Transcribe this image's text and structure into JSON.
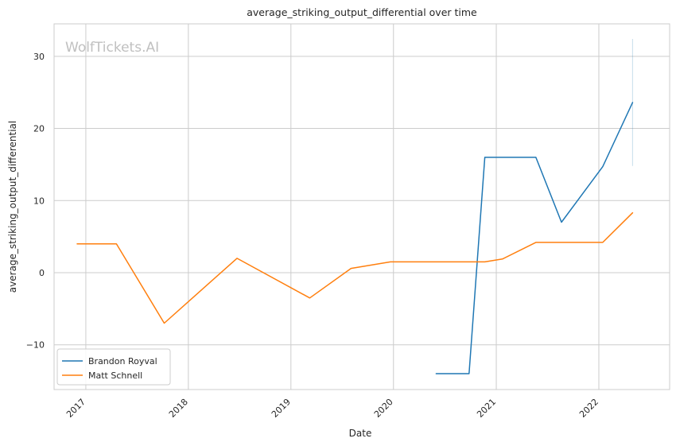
{
  "chart_data": {
    "type": "line",
    "title": "average_striking_output_differential over time",
    "xlabel": "Date",
    "ylabel": "average_striking_output_differential",
    "watermark": "WolfTickets.AI",
    "x_ticks": [
      "2017",
      "2018",
      "2019",
      "2020",
      "2021",
      "2022"
    ],
    "y_ticks": [
      -10,
      0,
      10,
      20,
      30
    ],
    "xlim": [
      "2016-09-10",
      "2022-09-10"
    ],
    "ylim": [
      -16.2,
      34.5
    ],
    "grid": true,
    "legend_position": "lower-left",
    "series": [
      {
        "name": "Brandon Royval",
        "color": "#1f77b4",
        "points": [
          {
            "x": "2020-06-01",
            "y": -14
          },
          {
            "x": "2020-09-26",
            "y": -14
          },
          {
            "x": "2020-11-21",
            "y": 16
          },
          {
            "x": "2021-05-22",
            "y": 16
          },
          {
            "x": "2021-08-21",
            "y": 7
          },
          {
            "x": "2022-01-15",
            "y": 14.7
          },
          {
            "x": "2022-05-01",
            "y": 23.6
          }
        ],
        "error_band": {
          "x": "2022-05-01",
          "low": 14.8,
          "high": 32.4
        }
      },
      {
        "name": "Matt Schnell",
        "color": "#ff7f0e",
        "points": [
          {
            "x": "2016-12-01",
            "y": 4
          },
          {
            "x": "2017-04-20",
            "y": 4
          },
          {
            "x": "2017-10-07",
            "y": -7
          },
          {
            "x": "2018-06-23",
            "y": 2
          },
          {
            "x": "2019-03-09",
            "y": -3.5
          },
          {
            "x": "2019-08-03",
            "y": 0.6
          },
          {
            "x": "2019-12-21",
            "y": 1.5
          },
          {
            "x": "2020-11-21",
            "y": 1.5
          },
          {
            "x": "2021-01-23",
            "y": 1.9
          },
          {
            "x": "2021-05-22",
            "y": 4.2
          },
          {
            "x": "2022-01-15",
            "y": 4.2
          },
          {
            "x": "2022-05-01",
            "y": 8.3
          }
        ]
      }
    ]
  }
}
